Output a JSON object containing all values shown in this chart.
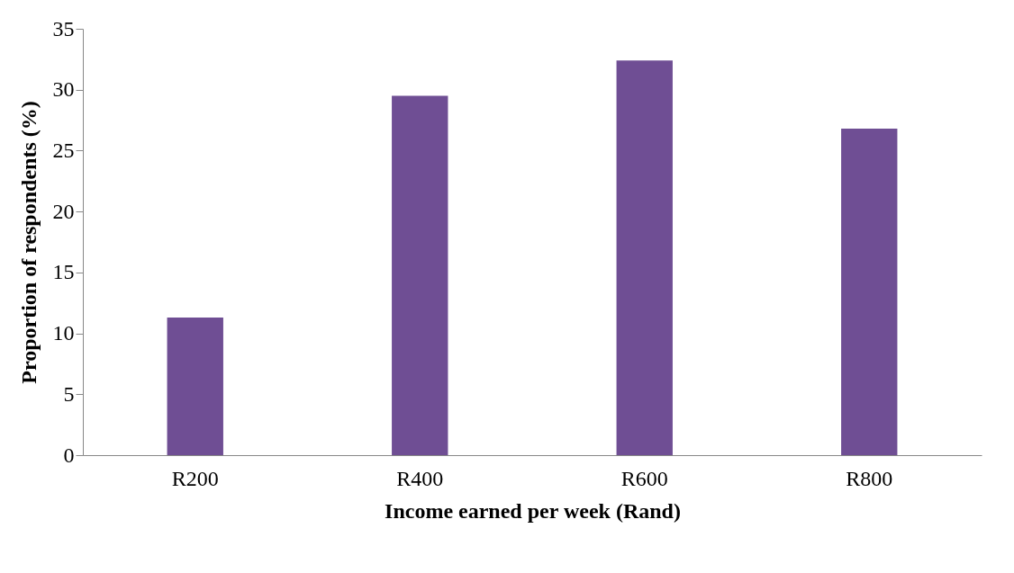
{
  "chart_data": {
    "type": "bar",
    "xlabel": "Income earned per week (Rand)",
    "ylabel": "Proportion of respondents (%)",
    "categories": [
      "R200",
      "R400",
      "R600",
      "R800"
    ],
    "values": [
      11.3,
      29.5,
      32.4,
      26.8
    ],
    "color": "#6f4e94",
    "ylim": [
      0,
      35
    ],
    "yticks": [
      0,
      5,
      10,
      15,
      20,
      25,
      30,
      35
    ],
    "grid": false
  }
}
